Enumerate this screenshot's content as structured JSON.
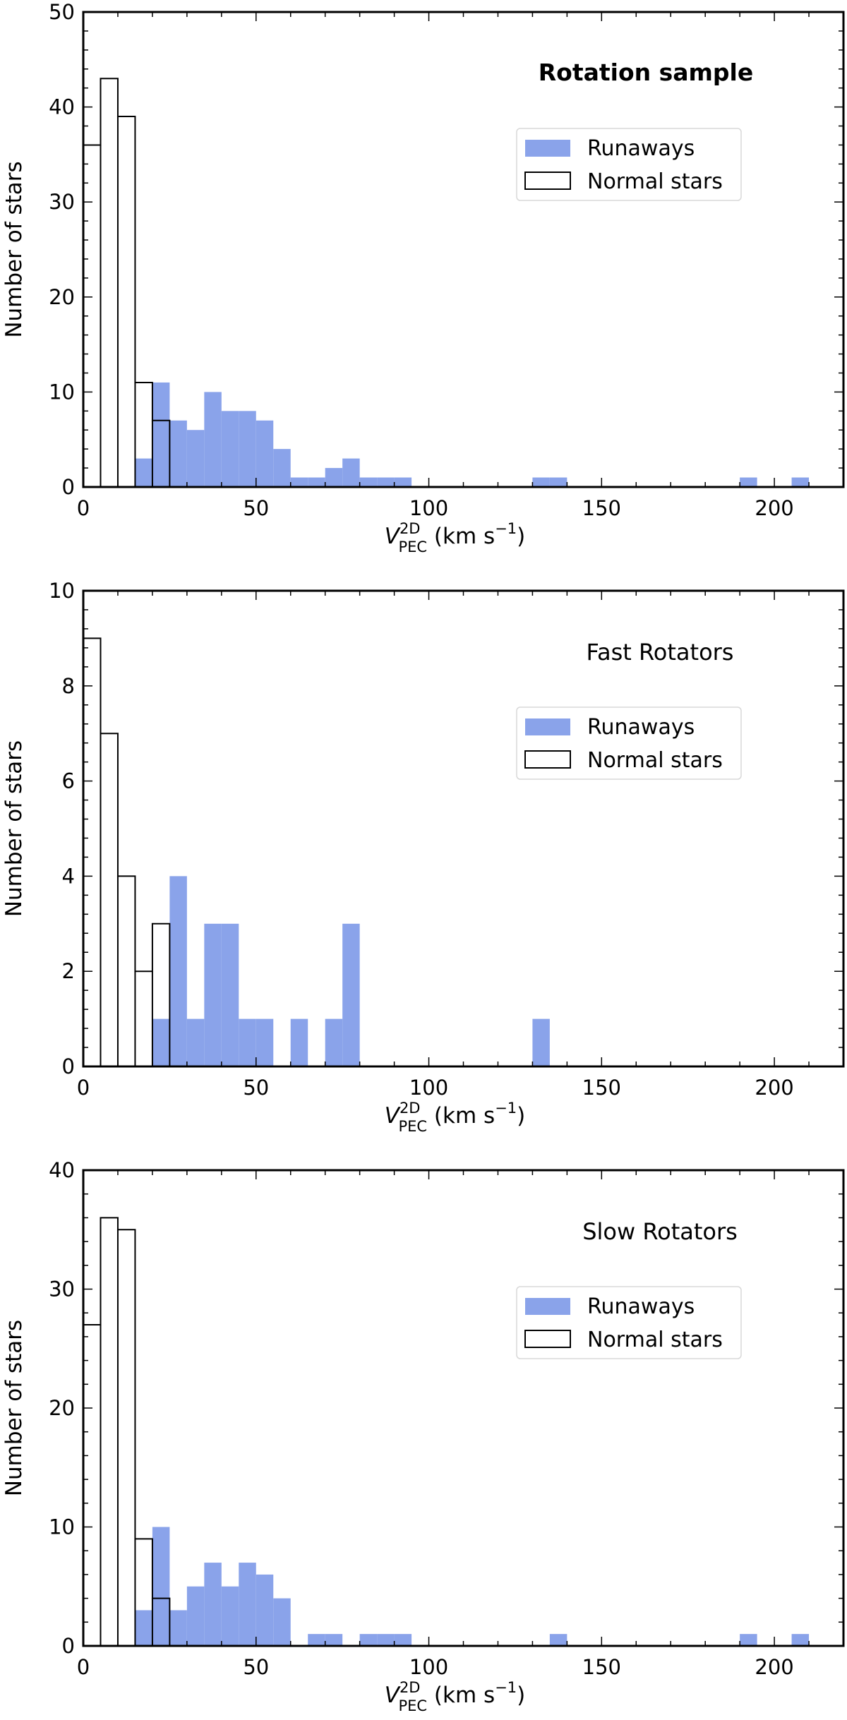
{
  "colors": {
    "runaway_fill": "#8aa3ea",
    "normal_fill": "#ffffff",
    "normal_edge": "#000000"
  },
  "chart_data": [
    {
      "type": "bar",
      "title": "Rotation sample",
      "title_bold": true,
      "xlabel": "V_PEC^2D (km s^-1)",
      "xlabel_parts": {
        "main": "V",
        "sup": "2D",
        "sub": "PEC",
        "unit_pre": " (km s",
        "unit_sup": "−1",
        "unit_post": ")"
      },
      "ylabel": "Number of stars",
      "xlim": [
        0,
        220
      ],
      "ylim": [
        0,
        50
      ],
      "xticks": [
        0,
        50,
        100,
        150,
        200
      ],
      "xtick_labels": [
        "0",
        "50",
        "100",
        "150",
        "200"
      ],
      "yticks": [
        0,
        10,
        20,
        30,
        40,
        50
      ],
      "ytick_labels": [
        "0",
        "10",
        "20",
        "30",
        "40",
        "50"
      ],
      "bin_width": 5,
      "legend": [
        "Runaways",
        "Normal stars"
      ],
      "series": [
        {
          "name": "Runaways",
          "bins": [
            [
              15,
              3
            ],
            [
              20,
              11
            ],
            [
              25,
              7
            ],
            [
              30,
              6
            ],
            [
              35,
              10
            ],
            [
              40,
              8
            ],
            [
              45,
              8
            ],
            [
              50,
              7
            ],
            [
              55,
              4
            ],
            [
              60,
              1
            ],
            [
              65,
              1
            ],
            [
              70,
              2
            ],
            [
              75,
              3
            ],
            [
              80,
              1
            ],
            [
              85,
              1
            ],
            [
              90,
              1
            ],
            [
              130,
              1
            ],
            [
              135,
              1
            ],
            [
              190,
              1
            ],
            [
              205,
              1
            ]
          ]
        },
        {
          "name": "Normal stars",
          "bins": [
            [
              0,
              36
            ],
            [
              5,
              43
            ],
            [
              10,
              39
            ],
            [
              15,
              11
            ],
            [
              20,
              7
            ]
          ]
        }
      ]
    },
    {
      "type": "bar",
      "title": "Fast Rotators",
      "title_bold": false,
      "xlabel": "V_PEC^2D (km s^-1)",
      "xlabel_parts": {
        "main": "V",
        "sup": "2D",
        "sub": "PEC",
        "unit_pre": " (km s",
        "unit_sup": "−1",
        "unit_post": ")"
      },
      "ylabel": "Number of stars",
      "xlim": [
        0,
        220
      ],
      "ylim": [
        0,
        10
      ],
      "xticks": [
        0,
        50,
        100,
        150,
        200
      ],
      "xtick_labels": [
        "0",
        "50",
        "100",
        "150",
        "200"
      ],
      "yticks": [
        0,
        2,
        4,
        6,
        8,
        10
      ],
      "ytick_labels": [
        "0",
        "2",
        "4",
        "6",
        "8",
        "10"
      ],
      "bin_width": 5,
      "legend": [
        "Runaways",
        "Normal stars"
      ],
      "series": [
        {
          "name": "Runaways",
          "bins": [
            [
              20,
              1
            ],
            [
              25,
              4
            ],
            [
              30,
              1
            ],
            [
              35,
              3
            ],
            [
              40,
              3
            ],
            [
              45,
              1
            ],
            [
              50,
              1
            ],
            [
              60,
              1
            ],
            [
              70,
              1
            ],
            [
              75,
              3
            ],
            [
              130,
              1
            ]
          ]
        },
        {
          "name": "Normal stars",
          "bins": [
            [
              0,
              9
            ],
            [
              5,
              7
            ],
            [
              10,
              4
            ],
            [
              15,
              2
            ],
            [
              20,
              3
            ]
          ]
        }
      ]
    },
    {
      "type": "bar",
      "title": "Slow Rotators",
      "title_bold": false,
      "xlabel": "V_PEC^2D (km s^-1)",
      "xlabel_parts": {
        "main": "V",
        "sup": "2D",
        "sub": "PEC",
        "unit_pre": " (km s",
        "unit_sup": "−1",
        "unit_post": ")"
      },
      "ylabel": "Number of stars",
      "xlim": [
        0,
        220
      ],
      "ylim": [
        0,
        40
      ],
      "xticks": [
        0,
        50,
        100,
        150,
        200
      ],
      "xtick_labels": [
        "0",
        "50",
        "100",
        "150",
        "200"
      ],
      "yticks": [
        0,
        10,
        20,
        30,
        40
      ],
      "ytick_labels": [
        "0",
        "10",
        "20",
        "30",
        "40"
      ],
      "bin_width": 5,
      "legend": [
        "Runaways",
        "Normal stars"
      ],
      "series": [
        {
          "name": "Runaways",
          "bins": [
            [
              15,
              3
            ],
            [
              20,
              10
            ],
            [
              25,
              3
            ],
            [
              30,
              5
            ],
            [
              35,
              7
            ],
            [
              40,
              5
            ],
            [
              45,
              7
            ],
            [
              50,
              6
            ],
            [
              55,
              4
            ],
            [
              65,
              1
            ],
            [
              70,
              1
            ],
            [
              80,
              1
            ],
            [
              85,
              1
            ],
            [
              90,
              1
            ],
            [
              135,
              1
            ],
            [
              190,
              1
            ],
            [
              205,
              1
            ]
          ]
        },
        {
          "name": "Normal stars",
          "bins": [
            [
              0,
              27
            ],
            [
              5,
              36
            ],
            [
              10,
              35
            ],
            [
              15,
              9
            ],
            [
              20,
              4
            ]
          ]
        }
      ]
    }
  ]
}
